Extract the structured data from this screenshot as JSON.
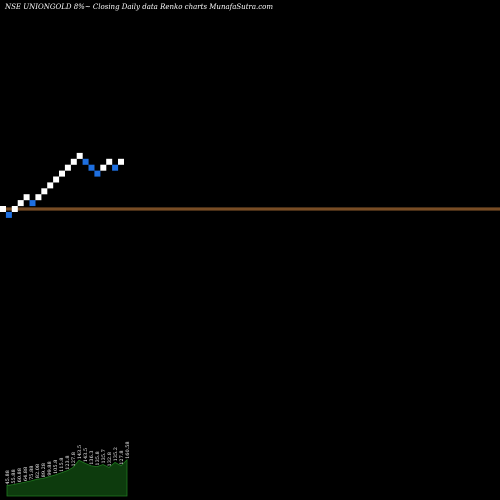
{
  "chart_data": {
    "type": "renko",
    "title": "NSE UNIONGOLD 8%~  Closing Daily data  Renko  charts MunafaSutra.com",
    "colors": {
      "background": "#000000",
      "up_brick": "#ffffff",
      "down_brick": "#1e6fe0",
      "reference_line": "#c07a3a",
      "volume_area": "#0d3b0d",
      "volume_outline": "#1f7a1f"
    },
    "bricks": [
      {
        "col": 0,
        "level": 0,
        "dir": "up"
      },
      {
        "col": 1,
        "level": -1,
        "dir": "down"
      },
      {
        "col": 2,
        "level": 0,
        "dir": "up"
      },
      {
        "col": 3,
        "level": 1,
        "dir": "up"
      },
      {
        "col": 4,
        "level": 2,
        "dir": "up"
      },
      {
        "col": 5,
        "level": 1,
        "dir": "down"
      },
      {
        "col": 6,
        "level": 2,
        "dir": "up"
      },
      {
        "col": 7,
        "level": 3,
        "dir": "up"
      },
      {
        "col": 8,
        "level": 4,
        "dir": "up"
      },
      {
        "col": 9,
        "level": 5,
        "dir": "up"
      },
      {
        "col": 10,
        "level": 6,
        "dir": "up"
      },
      {
        "col": 11,
        "level": 7,
        "dir": "up"
      },
      {
        "col": 12,
        "level": 8,
        "dir": "up"
      },
      {
        "col": 13,
        "level": 9,
        "dir": "up"
      },
      {
        "col": 14,
        "level": 8,
        "dir": "down"
      },
      {
        "col": 15,
        "level": 7,
        "dir": "down"
      },
      {
        "col": 16,
        "level": 6,
        "dir": "down"
      },
      {
        "col": 17,
        "level": 7,
        "dir": "up"
      },
      {
        "col": 18,
        "level": 8,
        "dir": "up"
      },
      {
        "col": 19,
        "level": 7,
        "dir": "down"
      },
      {
        "col": 20,
        "level": 8,
        "dir": "up"
      }
    ],
    "reference_lines": [
      {
        "name": "upper",
        "level": 0.15
      },
      {
        "name": "lower",
        "level": -0.15
      }
    ],
    "volume": [
      0.25,
      0.27,
      0.3,
      0.33,
      0.36,
      0.4,
      0.42,
      0.46,
      0.5,
      0.55,
      0.6,
      0.68,
      0.85,
      0.78,
      0.72,
      0.7,
      0.75,
      0.68,
      0.8,
      0.72,
      0.86
    ],
    "volume_labels": [
      "45.88",
      "55.88",
      "60.88",
      "64.88",
      "75.88",
      "82.08",
      "89.28",
      "99.88",
      "105.8",
      "115.8",
      "123.8",
      "127.8",
      "143.5",
      "143.5",
      "136.3",
      "135.8",
      "135.7",
      "132.8",
      "135.2",
      "127.8",
      "160.58"
    ]
  }
}
